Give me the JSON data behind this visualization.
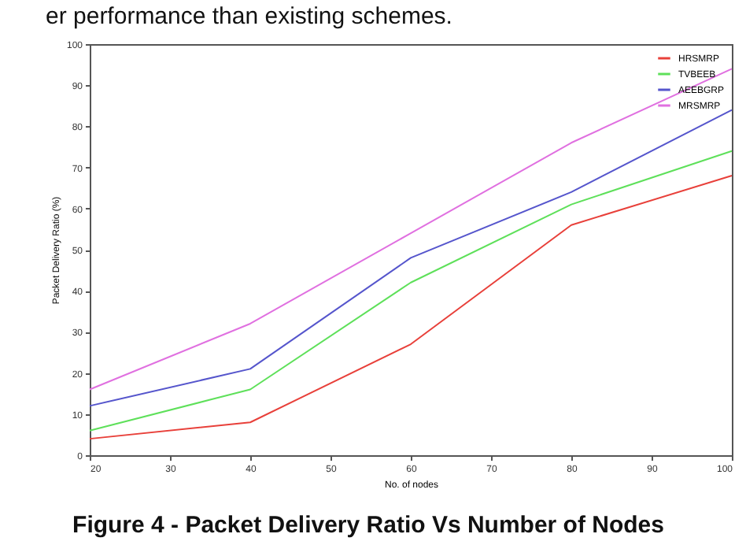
{
  "chart_data": {
    "type": "line",
    "xlabel": "No. of nodes",
    "ylabel": "Packet Delivery Ratio (%)",
    "x": [
      20,
      40,
      60,
      80,
      100
    ],
    "xlim": [
      20,
      100
    ],
    "xticks": [
      20,
      30,
      40,
      50,
      60,
      70,
      80,
      90,
      100
    ],
    "ylim": [
      0,
      100
    ],
    "yticks": [
      0,
      10,
      20,
      30,
      40,
      50,
      60,
      70,
      80,
      90,
      100
    ],
    "series": [
      {
        "name": "HRSMRP",
        "color": "#e8403a",
        "values": [
          4,
          8,
          27,
          56,
          68
        ]
      },
      {
        "name": "TVBEEB",
        "color": "#5ee05a",
        "values": [
          6,
          16,
          42,
          61,
          74
        ]
      },
      {
        "name": "AEEBGRP",
        "color": "#5555cc",
        "values": [
          12,
          21,
          48,
          64,
          84
        ]
      },
      {
        "name": "MRSMRP",
        "color": "#e070e0",
        "values": [
          16,
          32,
          54,
          76,
          94
        ]
      }
    ],
    "legend": "top right",
    "grid": false,
    "marker": "none",
    "line_style": "solid",
    "annotations": [
      "er performance than existing schemes.",
      "Figure 4 - Packet Delivery Ratio Vs Number of Nodes"
    ]
  }
}
